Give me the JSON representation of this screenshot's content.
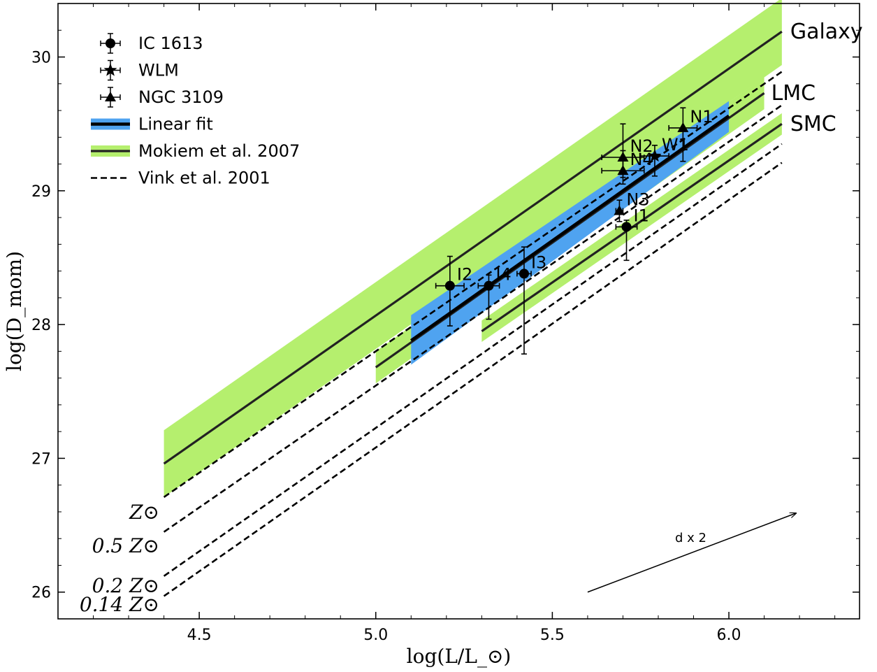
{
  "chart_data": {
    "type": "scatter",
    "title": "",
    "xlabel": "log(L/L_⊙)",
    "ylabel": "log(D_mom)",
    "xlim": [
      4.1,
      6.37
    ],
    "ylim": [
      25.8,
      30.4
    ],
    "xticks": [
      "4.5",
      "5.0",
      "5.5",
      "6.0"
    ],
    "xtick_values": [
      4.5,
      5.0,
      5.5,
      6.0
    ],
    "yticks": [
      "26",
      "27",
      "28",
      "29",
      "30"
    ],
    "ytick_values": [
      26,
      27,
      28,
      29,
      30
    ],
    "legend": {
      "position": "top-left",
      "entries": [
        {
          "label": "IC 1613",
          "kind": "circle"
        },
        {
          "label": "WLM",
          "kind": "star"
        },
        {
          "label": "NGC 3109",
          "kind": "triangle"
        },
        {
          "label": "Linear fit",
          "kind": "fit"
        },
        {
          "label": "Mokiem et al. 2007",
          "kind": "mokiem"
        },
        {
          "label": "Vink et al. 2001",
          "kind": "vink"
        }
      ]
    },
    "series": [
      {
        "name": "IC 1613",
        "marker": "circle",
        "points": [
          {
            "label": "I1",
            "x": 5.71,
            "y": 28.73,
            "xerr": 0.03,
            "yerr_low": 0.25,
            "yerr_high": 0.05
          },
          {
            "label": "I2",
            "x": 5.21,
            "y": 28.29,
            "xerr": 0.04,
            "yerr_low": 0.3,
            "yerr_high": 0.22
          },
          {
            "label": "I3",
            "x": 5.42,
            "y": 28.38,
            "xerr": 0.02,
            "yerr_low": 0.6,
            "yerr_high": 0.2
          },
          {
            "label": "I4",
            "x": 5.32,
            "y": 28.29,
            "xerr": 0.03,
            "yerr_low": 0.25,
            "yerr_high": 0.08
          }
        ]
      },
      {
        "name": "WLM",
        "marker": "star",
        "points": [
          {
            "label": "W1",
            "x": 5.79,
            "y": 29.26,
            "xerr": 0.04,
            "yerr_low": 0.15,
            "yerr_high": 0.08
          }
        ]
      },
      {
        "name": "NGC 3109",
        "marker": "triangle",
        "points": [
          {
            "label": "N1",
            "x": 5.87,
            "y": 29.47,
            "xerr": 0.04,
            "yerr_low": 0.25,
            "yerr_high": 0.15
          },
          {
            "label": "N2",
            "x": 5.7,
            "y": 29.25,
            "xerr": 0.06,
            "yerr_low": 0.2,
            "yerr_high": 0.25
          },
          {
            "label": "N3",
            "x": 5.69,
            "y": 28.85,
            "xerr": 0.01,
            "yerr_low": 0.08,
            "yerr_high": 0.08
          },
          {
            "label": "N4",
            "x": 5.7,
            "y": 29.15,
            "xerr": 0.06,
            "yerr_low": 0.05,
            "yerr_high": 0.15
          }
        ]
      }
    ],
    "linear_fit": {
      "x": [
        5.1,
        6.0
      ],
      "y": [
        27.88,
        29.56
      ],
      "band_low": [
        27.7,
        29.44
      ],
      "band_high": [
        28.07,
        29.67
      ]
    },
    "mokiem": [
      {
        "label": "Galaxy",
        "x": [
          4.4,
          6.15
        ],
        "y": [
          26.96,
          30.19
        ],
        "halfwidth": 0.25
      },
      {
        "label": "LMC",
        "x": [
          5.0,
          6.1
        ],
        "y": [
          27.68,
          29.73
        ],
        "halfwidth": 0.12
      },
      {
        "label": "SMC",
        "x": [
          5.3,
          6.15
        ],
        "y": [
          27.95,
          29.5
        ],
        "halfwidth": 0.08
      }
    ],
    "vink": [
      {
        "x": [
          4.4,
          6.15
        ],
        "y": [
          26.71,
          29.89
        ],
        "label": "Z",
        "prefix": "",
        "label_y": 26.6
      },
      {
        "x": [
          4.4,
          6.15
        ],
        "y": [
          26.45,
          29.64
        ],
        "label": "Z",
        "prefix": "0.5",
        "label_y": 26.35
      },
      {
        "x": [
          4.4,
          6.15
        ],
        "y": [
          26.12,
          29.35
        ],
        "label": "Z",
        "prefix": "0.2",
        "label_y": 26.05
      },
      {
        "x": [
          4.4,
          6.15
        ],
        "y": [
          25.97,
          29.21
        ],
        "label": "Z",
        "prefix": "0.14",
        "label_y": 25.91
      }
    ],
    "annotation": {
      "text": "d x 2",
      "x_start": 5.6,
      "y_start": 26.0,
      "x_end": 6.19,
      "y_end": 26.59
    }
  }
}
